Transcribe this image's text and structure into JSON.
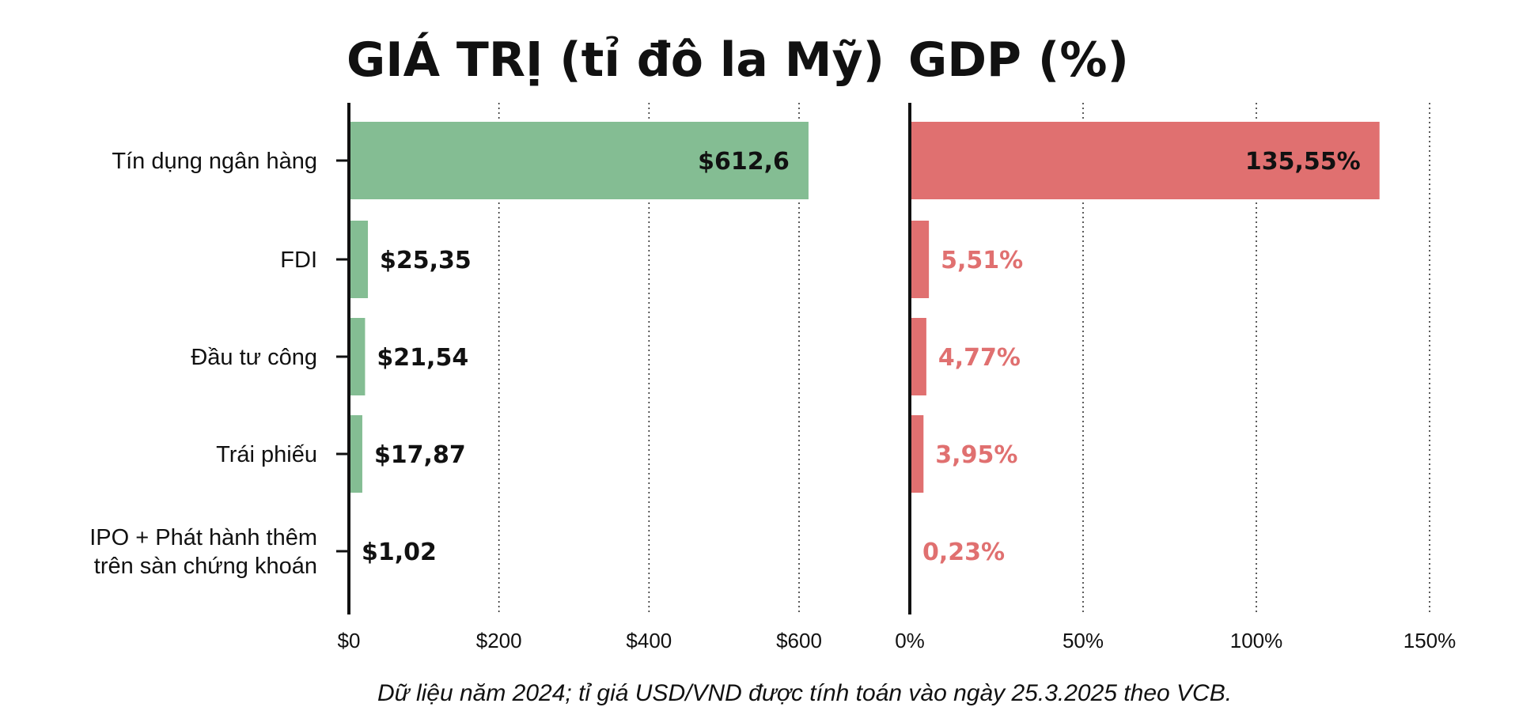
{
  "footnote": "Dữ liệu năm 2024; tỉ giá USD/VND được tính toán vào ngày 25.3.2025 theo VCB.",
  "colors": {
    "value_bar": "#84bd93",
    "gdp_bar": "#e07070",
    "value_label": "#111111",
    "gdp_label": "#e07070",
    "axis": "#111111",
    "grid": "#333333"
  },
  "chart_data": [
    {
      "type": "bar",
      "orientation": "horizontal",
      "title": "GIÁ TRỊ (tỉ đô la Mỹ)",
      "categories": [
        "Tín dụng ngân hàng",
        "FDI",
        "Đầu tư công",
        "Trái phiếu",
        "IPO + Phát hành thêm trên sàn chứng khoán"
      ],
      "category_lines": [
        [
          "Tín dụng ngân hàng"
        ],
        [
          "FDI"
        ],
        [
          "Đầu tư công"
        ],
        [
          "Trái phiếu"
        ],
        [
          "IPO + Phát hành thêm",
          "trên sàn chứng khoán"
        ]
      ],
      "values": [
        612.6,
        25.35,
        21.54,
        17.87,
        1.02
      ],
      "data_labels": [
        "$612,6",
        "$25,35",
        "$21,54",
        "$17,87",
        "$1,02"
      ],
      "xlim": [
        0,
        600
      ],
      "xticks": [
        0,
        200,
        400,
        600
      ],
      "xtick_labels": [
        "$0",
        "$200",
        "$400",
        "$600"
      ],
      "grid": true,
      "grid_style": "dotted vertical"
    },
    {
      "type": "bar",
      "orientation": "horizontal",
      "title": "GDP (%)",
      "categories": [
        "Tín dụng ngân hàng",
        "FDI",
        "Đầu tư công",
        "Trái phiếu",
        "IPO + Phát hành thêm trên sàn chứng khoán"
      ],
      "values": [
        135.55,
        5.51,
        4.77,
        3.95,
        0.23
      ],
      "data_labels": [
        "135,55%",
        "5,51%",
        "4,77%",
        "3,95%",
        "0,23%"
      ],
      "xlim": [
        0,
        150
      ],
      "xticks": [
        0,
        50,
        100,
        150
      ],
      "xtick_labels": [
        "0%",
        "50%",
        "100%",
        "150%"
      ],
      "grid": true,
      "grid_style": "dotted vertical"
    }
  ]
}
